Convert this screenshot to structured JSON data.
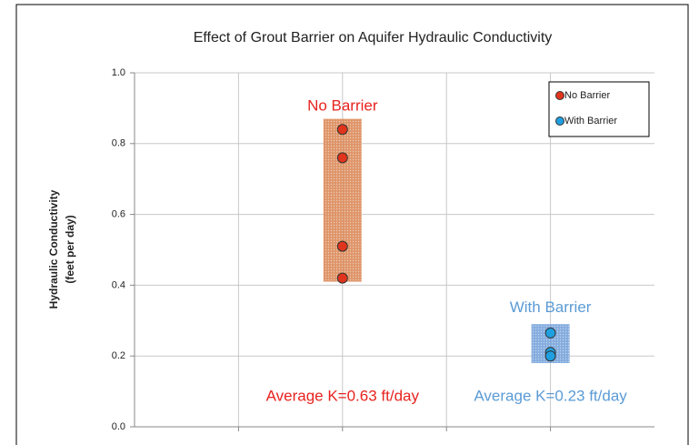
{
  "chart_data": {
    "type": "scatter",
    "title": "Effect of Grout Barrier on Aquifer Hydraulic Conductivity",
    "ylabel": [
      "Hydraulic Conductivity",
      "(feet per day)"
    ],
    "xlim": [
      0,
      5
    ],
    "xticks": [
      1,
      2,
      3,
      4
    ],
    "ylim": [
      0,
      1
    ],
    "yticks": [
      {
        "value": 0,
        "label": "0.0"
      },
      {
        "value": 0.2,
        "label": "0.2"
      },
      {
        "value": 0.4,
        "label": "0.4"
      },
      {
        "value": 0.6,
        "label": "0.6"
      },
      {
        "value": 0.8,
        "label": "0.8"
      },
      {
        "value": 1,
        "label": "1.0"
      }
    ],
    "grid": true,
    "legend": "upper right",
    "series": [
      {
        "name": "No Barrier",
        "color": "#e0341c",
        "band_color": "#d9824f",
        "x": [
          2,
          2,
          2,
          2
        ],
        "values": [
          0.84,
          0.76,
          0.51,
          0.42
        ],
        "band": [
          0.41,
          0.87
        ]
      },
      {
        "name": "With Barrier",
        "color": "#1f9fe0",
        "band_color": "#6f9ed8",
        "x": [
          4,
          4,
          4
        ],
        "values": [
          0.265,
          0.21,
          0.2
        ],
        "band": [
          0.18,
          0.29
        ]
      }
    ],
    "annotations": [
      {
        "text": "No Barrier",
        "color": "#e8231f"
      },
      {
        "text": "With Barrier",
        "color": "#5b9bd5"
      },
      {
        "text": "Average K=0.63 ft/day",
        "color": "#e8231f"
      },
      {
        "text": "Average K=0.23 ft/day",
        "color": "#5b9bd5"
      }
    ]
  }
}
